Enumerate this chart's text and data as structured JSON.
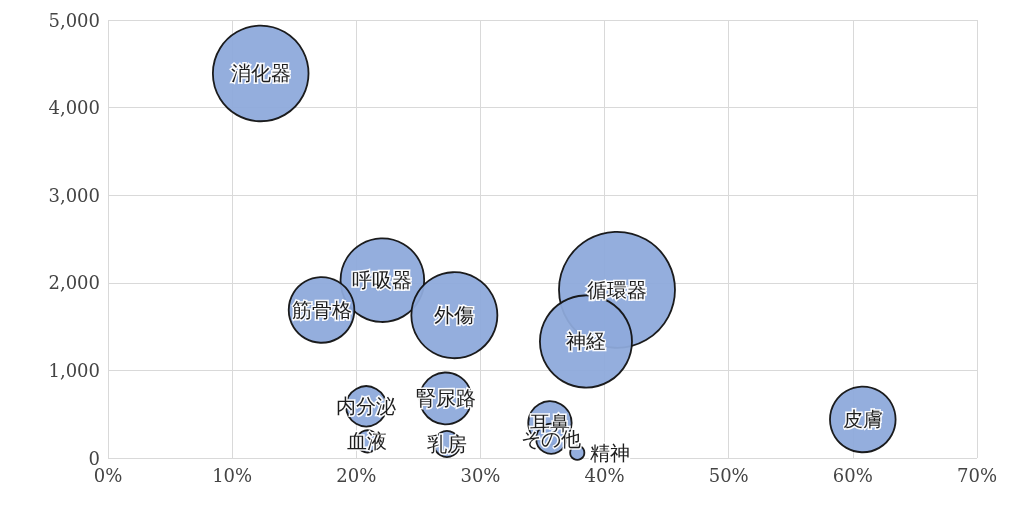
{
  "chart_data": {
    "type": "bubble",
    "xlim": [
      0,
      70
    ],
    "xticks": [
      {
        "value": 0,
        "label": "0%"
      },
      {
        "value": 10,
        "label": "10%"
      },
      {
        "value": 20,
        "label": "20%"
      },
      {
        "value": 30,
        "label": "30%"
      },
      {
        "value": 40,
        "label": "40%"
      },
      {
        "value": 50,
        "label": "50%"
      },
      {
        "value": 60,
        "label": "60%"
      },
      {
        "value": 70,
        "label": "70%"
      }
    ],
    "ylim": [
      0,
      5000
    ],
    "yticks": [
      {
        "value": 0,
        "label": "0"
      },
      {
        "value": 1000,
        "label": "1,000"
      },
      {
        "value": 2000,
        "label": "2,000"
      },
      {
        "value": 3000,
        "label": "3,000"
      },
      {
        "value": 4000,
        "label": "4,000"
      },
      {
        "value": 5000,
        "label": "5,000"
      }
    ],
    "grid": true,
    "legend": false,
    "series": [
      {
        "name": "消化器",
        "color": "#8eaadb",
        "x": [
          12.3
        ],
        "values": [
          4390
        ],
        "sizes": [
          0.68
        ]
      },
      {
        "name": "呼吸器",
        "color": "#8eaadb",
        "x": [
          22.1
        ],
        "values": [
          2030
        ],
        "sizes": [
          0.52
        ]
      },
      {
        "name": "筋骨格",
        "color": "#8eaadb",
        "x": [
          17.2
        ],
        "values": [
          1690
        ],
        "sizes": [
          0.32
        ]
      },
      {
        "name": "外傷",
        "color": "#8eaadb",
        "x": [
          27.9
        ],
        "values": [
          1630
        ],
        "sizes": [
          0.55
        ]
      },
      {
        "name": "循環器",
        "color": "#8eaadb",
        "x": [
          41.0
        ],
        "values": [
          1920
        ],
        "sizes": [
          1
        ]
      },
      {
        "name": "神経",
        "color": "#8eaadb",
        "x": [
          38.5
        ],
        "values": [
          1330
        ],
        "sizes": [
          0.63
        ]
      },
      {
        "name": "皮膚",
        "color": "#8eaadb",
        "x": [
          60.8
        ],
        "values": [
          440
        ],
        "sizes": [
          0.32
        ]
      },
      {
        "name": "内分泌",
        "color": "#8eaadb",
        "x": [
          20.8
        ],
        "values": [
          590
        ],
        "sizes": [
          0.12
        ]
      },
      {
        "name": "腎尿路",
        "color": "#8eaadb",
        "x": [
          27.2
        ],
        "values": [
          680
        ],
        "sizes": [
          0.2
        ]
      },
      {
        "name": "耳鼻",
        "color": "#8eaadb",
        "x": [
          35.6
        ],
        "values": [
          400
        ],
        "sizes": [
          0.14
        ]
      },
      {
        "name": "その他",
        "color": "#8eaadb",
        "x": [
          35.7
        ],
        "values": [
          220
        ],
        "sizes": [
          0.067
        ]
      },
      {
        "name": "血液",
        "color": "#8eaadb",
        "x": [
          20.9
        ],
        "values": [
          190
        ],
        "sizes": [
          0.036
        ]
      },
      {
        "name": "乳房",
        "color": "#8eaadb",
        "x": [
          27.3
        ],
        "values": [
          160
        ],
        "sizes": [
          0.05
        ]
      },
      {
        "name": "精神",
        "color": "#8eaadb",
        "x": [
          37.8
        ],
        "values": [
          60
        ],
        "sizes": [
          0.015
        ]
      }
    ]
  }
}
